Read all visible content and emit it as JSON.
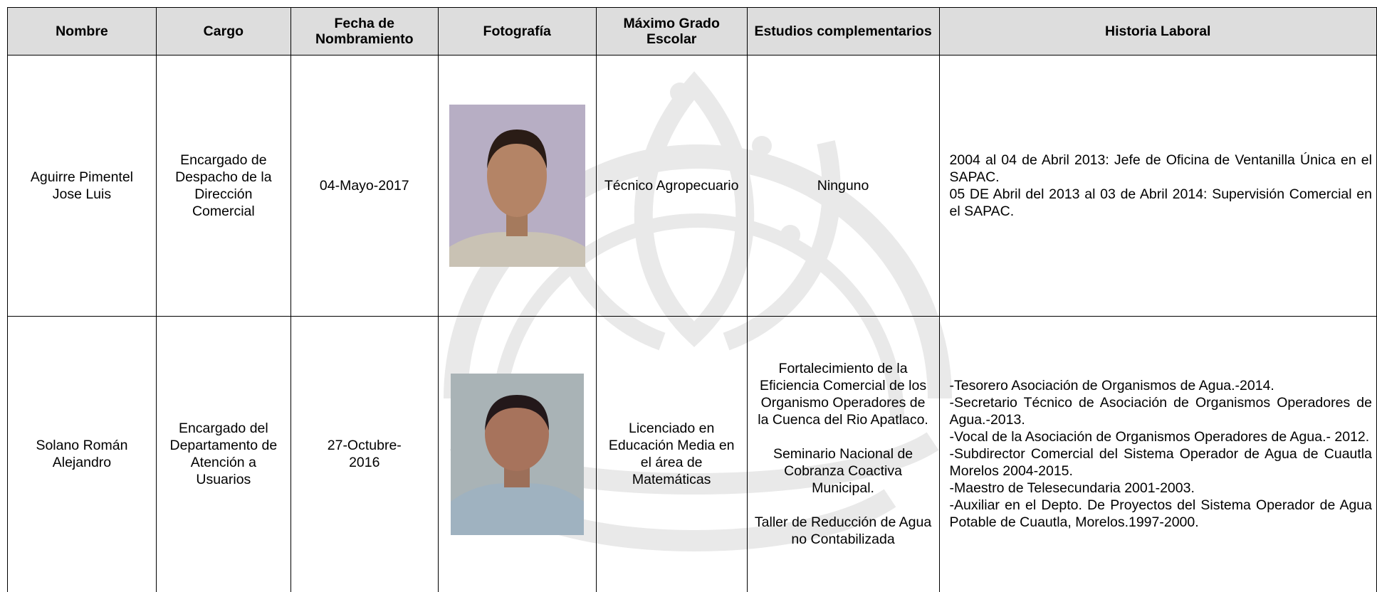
{
  "table": {
    "headers": [
      "Nombre",
      "Cargo",
      "Fecha de Nombramiento",
      "Fotografía",
      "Máximo Grado Escolar",
      "Estudios complementarios",
      "Historia Laboral"
    ],
    "rows": [
      {
        "nombre": "Aguirre Pimentel Jose Luis",
        "cargo": "Encargado de Despacho de la Dirección Comercial",
        "fecha": "04-Mayo-2017",
        "grado": "Técnico Agropecuario",
        "estudios": [
          "Ninguno"
        ],
        "historia": [
          "2004 al 04 de Abril 2013: Jefe de Oficina de Ventanilla Única en el SAPAC.",
          "05 DE Abril del 2013 al 03 de Abril 2014: Supervisión Comercial en el SAPAC."
        ]
      },
      {
        "nombre": "Solano Román Alejandro",
        "cargo": "Encargado del Departamento de Atención a Usuarios",
        "fecha": "27-Octubre-2016",
        "grado": "Licenciado en Educación Media en el área de Matemáticas",
        "estudios": [
          "Fortalecimiento de la Eficiencia Comercial de los Organismo Operadores de la Cuenca del Rio Apatlaco.",
          "Seminario Nacional de Cobranza Coactiva Municipal.",
          "Taller de Reducción de Agua no Contabilizada"
        ],
        "historia": [
          "-Tesorero Asociación de Organismos de Agua.-2014.",
          "-Secretario Técnico de Asociación de Organismos Operadores de Agua.-2013.",
          "-Vocal de la Asociación de Organismos Operadores de Agua.- 2012.",
          "-Subdirector Comercial del Sistema Operador de Agua de Cuautla Morelos 2004-2015.",
          "-Maestro de Telesecundaria 2001-2003.",
          "-Auxiliar en el Depto. De Proyectos del Sistema Operador de Agua Potable de Cuautla, Morelos.1997-2000."
        ]
      }
    ]
  }
}
